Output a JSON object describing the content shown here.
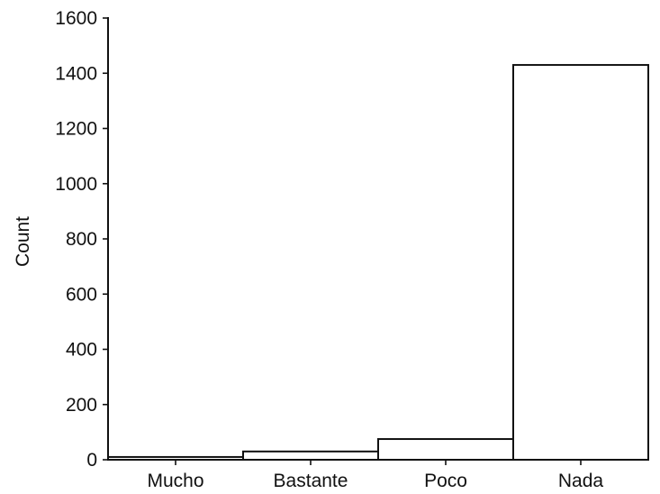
{
  "chart_data": {
    "type": "bar",
    "title": "",
    "xlabel": "",
    "ylabel": "Count",
    "categories": [
      "Mucho",
      "Bastante",
      "Poco",
      "Nada"
    ],
    "values": [
      10,
      30,
      75,
      1430
    ],
    "ylim": [
      0,
      1600
    ],
    "yticks": [
      0,
      200,
      400,
      600,
      800,
      1000,
      1200,
      1400,
      1600
    ],
    "ytick_labels": [
      "0",
      "200",
      "400",
      "600",
      "800",
      "1000",
      "1200",
      "1400",
      "1600"
    ],
    "bar_fill": "#ffffff",
    "bar_edge": "#111111",
    "grid": false,
    "legend": "none"
  }
}
